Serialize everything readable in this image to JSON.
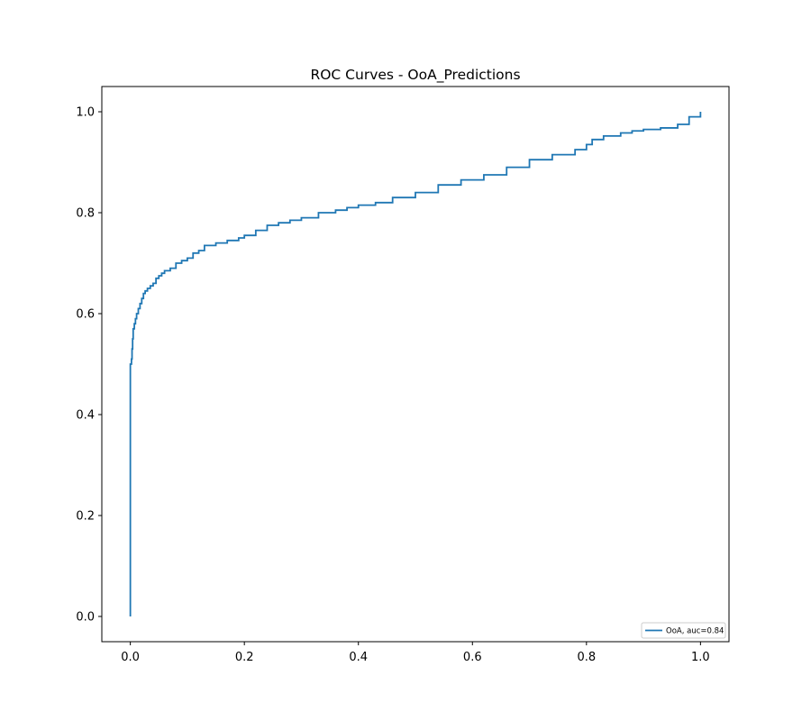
{
  "chart_data": {
    "type": "line",
    "title": "ROC Curves - OoA_Predictions",
    "xlabel": "",
    "ylabel": "",
    "xlim": [
      -0.05,
      1.05
    ],
    "ylim": [
      -0.05,
      1.05
    ],
    "xticks": [
      {
        "value": 0.0,
        "label": "0.0"
      },
      {
        "value": 0.2,
        "label": "0.2"
      },
      {
        "value": 0.4,
        "label": "0.4"
      },
      {
        "value": 0.6,
        "label": "0.6"
      },
      {
        "value": 0.8,
        "label": "0.8"
      },
      {
        "value": 1.0,
        "label": "1.0"
      }
    ],
    "yticks": [
      {
        "value": 0.0,
        "label": "0.0"
      },
      {
        "value": 0.2,
        "label": "0.2"
      },
      {
        "value": 0.4,
        "label": "0.4"
      },
      {
        "value": 0.6,
        "label": "0.6"
      },
      {
        "value": 0.8,
        "label": "0.8"
      },
      {
        "value": 1.0,
        "label": "1.0"
      }
    ],
    "grid": false,
    "legend_position": "lower-right",
    "series": [
      {
        "name": "OoA, auc=0.84",
        "color": "#1f77b4",
        "step": true,
        "x": [
          0.0,
          0.0,
          0.0,
          0.002,
          0.003,
          0.004,
          0.005,
          0.007,
          0.009,
          0.011,
          0.014,
          0.017,
          0.02,
          0.023,
          0.026,
          0.03,
          0.035,
          0.04,
          0.045,
          0.05,
          0.055,
          0.06,
          0.07,
          0.08,
          0.09,
          0.1,
          0.11,
          0.12,
          0.13,
          0.15,
          0.17,
          0.19,
          0.2,
          0.22,
          0.24,
          0.26,
          0.28,
          0.3,
          0.33,
          0.36,
          0.38,
          0.4,
          0.43,
          0.46,
          0.5,
          0.54,
          0.58,
          0.62,
          0.66,
          0.7,
          0.74,
          0.78,
          0.8,
          0.81,
          0.83,
          0.86,
          0.88,
          0.9,
          0.93,
          0.96,
          0.98,
          1.0
        ],
        "y": [
          0.0,
          0.49,
          0.5,
          0.51,
          0.53,
          0.55,
          0.57,
          0.58,
          0.59,
          0.6,
          0.61,
          0.62,
          0.63,
          0.64,
          0.645,
          0.65,
          0.655,
          0.66,
          0.67,
          0.675,
          0.68,
          0.685,
          0.69,
          0.7,
          0.705,
          0.71,
          0.72,
          0.725,
          0.735,
          0.74,
          0.745,
          0.75,
          0.755,
          0.765,
          0.775,
          0.78,
          0.785,
          0.79,
          0.8,
          0.805,
          0.81,
          0.815,
          0.82,
          0.83,
          0.84,
          0.855,
          0.865,
          0.875,
          0.89,
          0.905,
          0.915,
          0.925,
          0.935,
          0.945,
          0.952,
          0.958,
          0.962,
          0.965,
          0.968,
          0.975,
          0.99,
          1.0
        ]
      }
    ]
  }
}
